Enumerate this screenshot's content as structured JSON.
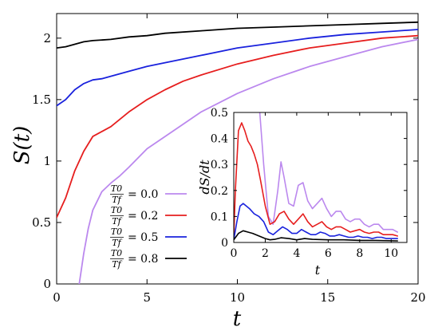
{
  "chart_data": [
    {
      "type": "line",
      "xlabel": "t",
      "ylabel": "S(t)",
      "xlim": [
        0,
        20
      ],
      "ylim": [
        0,
        2.2
      ],
      "x_ticks": [
        "0",
        "5",
        "10",
        "15",
        "20"
      ],
      "y_ticks": [
        "0",
        "0.5",
        "1",
        "1.5",
        "2"
      ],
      "grid": false,
      "legend_position": "bottom-center",
      "series": [
        {
          "name": "T0/Tf = 0.0",
          "legend_lhs": "T0/Tf",
          "legend_rhs": "= 0.0",
          "color": "#bb88ee",
          "x": [
            1.25,
            1.5,
            1.75,
            2,
            2.5,
            3,
            3.5,
            4,
            5,
            6,
            7,
            8,
            10,
            12,
            14,
            16,
            18,
            20
          ],
          "y": [
            0,
            0.25,
            0.45,
            0.6,
            0.75,
            0.82,
            0.88,
            0.95,
            1.1,
            1.2,
            1.3,
            1.4,
            1.55,
            1.67,
            1.77,
            1.85,
            1.93,
            1.99
          ]
        },
        {
          "name": "T0/Tf = 0.2",
          "legend_lhs": "T0/Tf",
          "legend_rhs": "= 0.2",
          "color": "#e61e1e",
          "x": [
            0,
            0.5,
            1,
            1.5,
            2,
            2.5,
            3,
            4,
            5,
            6,
            7,
            8,
            10,
            12,
            14,
            16,
            18,
            20
          ],
          "y": [
            0.54,
            0.7,
            0.92,
            1.08,
            1.2,
            1.24,
            1.28,
            1.4,
            1.5,
            1.58,
            1.65,
            1.7,
            1.79,
            1.86,
            1.92,
            1.96,
            2.0,
            2.02
          ]
        },
        {
          "name": "T0/Tf = 0.5",
          "legend_lhs": "T0/Tf",
          "legend_rhs": "= 0.5",
          "color": "#1a22dd",
          "x": [
            0,
            0.5,
            1,
            1.5,
            2,
            2.5,
            3,
            4,
            5,
            6,
            8,
            10,
            12,
            14,
            16,
            18,
            20
          ],
          "y": [
            1.45,
            1.5,
            1.58,
            1.63,
            1.66,
            1.67,
            1.69,
            1.73,
            1.77,
            1.8,
            1.86,
            1.92,
            1.96,
            2.0,
            2.03,
            2.05,
            2.07
          ]
        },
        {
          "name": "T0/Tf = 0.8",
          "legend_lhs": "T0/Tf",
          "legend_rhs": "= 0.8",
          "color": "#000000",
          "x": [
            0,
            0.5,
            1,
            1.5,
            2,
            3,
            4,
            5,
            6,
            8,
            10,
            12,
            14,
            16,
            18,
            20
          ],
          "y": [
            1.92,
            1.93,
            1.95,
            1.97,
            1.98,
            1.99,
            2.01,
            2.02,
            2.04,
            2.06,
            2.08,
            2.09,
            2.1,
            2.11,
            2.12,
            2.13
          ]
        }
      ]
    },
    {
      "type": "line",
      "xlabel": "t",
      "ylabel": "dS/dt",
      "xlim": [
        0,
        11
      ],
      "ylim": [
        0,
        0.5
      ],
      "x_ticks": [
        "0",
        "2",
        "4",
        "6",
        "8",
        "10"
      ],
      "y_ticks": [
        "0",
        "0.1",
        "0.2",
        "0.3",
        "0.4",
        "0.5"
      ],
      "grid": false,
      "series": [
        {
          "name": "T0/Tf = 0.0",
          "color": "#bb88ee",
          "x": [
            1.65,
            1.9,
            2.2,
            2.5,
            2.8,
            3.0,
            3.2,
            3.5,
            3.8,
            4.1,
            4.4,
            4.7,
            5.0,
            5.3,
            5.6,
            5.9,
            6.2,
            6.5,
            6.8,
            7.1,
            7.4,
            7.7,
            8.0,
            8.3,
            8.6,
            8.9,
            9.2,
            9.5,
            9.8,
            10.1,
            10.4
          ],
          "y": [
            0.5,
            0.3,
            0.1,
            0.07,
            0.2,
            0.31,
            0.25,
            0.15,
            0.14,
            0.22,
            0.23,
            0.16,
            0.13,
            0.15,
            0.17,
            0.13,
            0.1,
            0.12,
            0.12,
            0.09,
            0.08,
            0.09,
            0.09,
            0.07,
            0.06,
            0.07,
            0.07,
            0.05,
            0.05,
            0.05,
            0.04
          ]
        },
        {
          "name": "T0/Tf = 0.2",
          "color": "#e61e1e",
          "x": [
            0,
            0.1,
            0.3,
            0.5,
            0.7,
            0.9,
            1.1,
            1.3,
            1.5,
            1.7,
            2.0,
            2.3,
            2.6,
            2.9,
            3.2,
            3.5,
            3.8,
            4.1,
            4.4,
            4.7,
            5.0,
            5.3,
            5.6,
            5.9,
            6.2,
            6.5,
            6.8,
            7.1,
            7.4,
            7.7,
            8.0,
            8.3,
            8.6,
            8.9,
            9.2,
            9.5,
            9.8,
            10.1,
            10.4
          ],
          "y": [
            0.02,
            0.2,
            0.43,
            0.46,
            0.43,
            0.39,
            0.37,
            0.34,
            0.3,
            0.24,
            0.14,
            0.07,
            0.08,
            0.11,
            0.12,
            0.09,
            0.07,
            0.09,
            0.11,
            0.08,
            0.06,
            0.07,
            0.08,
            0.06,
            0.05,
            0.06,
            0.06,
            0.05,
            0.04,
            0.045,
            0.05,
            0.04,
            0.035,
            0.04,
            0.04,
            0.03,
            0.03,
            0.03,
            0.025
          ]
        },
        {
          "name": "T0/Tf = 0.5",
          "color": "#1a22dd",
          "x": [
            0,
            0.2,
            0.4,
            0.6,
            0.8,
            1.0,
            1.3,
            1.6,
            1.9,
            2.2,
            2.5,
            2.8,
            3.1,
            3.4,
            3.7,
            4.0,
            4.3,
            4.6,
            4.9,
            5.2,
            5.5,
            5.8,
            6.1,
            6.4,
            6.7,
            7.0,
            7.3,
            7.6,
            7.9,
            8.2,
            8.5,
            8.8,
            9.1,
            9.4,
            9.7,
            10.0,
            10.4
          ],
          "y": [
            0.01,
            0.08,
            0.14,
            0.15,
            0.14,
            0.13,
            0.11,
            0.1,
            0.08,
            0.04,
            0.03,
            0.045,
            0.06,
            0.05,
            0.035,
            0.035,
            0.05,
            0.04,
            0.03,
            0.03,
            0.04,
            0.035,
            0.025,
            0.025,
            0.03,
            0.025,
            0.02,
            0.02,
            0.025,
            0.02,
            0.02,
            0.015,
            0.02,
            0.02,
            0.015,
            0.015,
            0.015
          ]
        },
        {
          "name": "T0/Tf = 0.8",
          "color": "#000000",
          "x": [
            0,
            0.3,
            0.6,
            0.9,
            1.2,
            1.6,
            2.0,
            2.3,
            2.6,
            3.0,
            3.5,
            4.0,
            4.5,
            5.0,
            6.0,
            7.0,
            8.0,
            9.0,
            10.4
          ],
          "y": [
            0.01,
            0.035,
            0.045,
            0.04,
            0.035,
            0.025,
            0.015,
            0.01,
            0.012,
            0.018,
            0.015,
            0.01,
            0.015,
            0.012,
            0.01,
            0.01,
            0.008,
            0.008,
            0.006
          ]
        }
      ]
    }
  ]
}
